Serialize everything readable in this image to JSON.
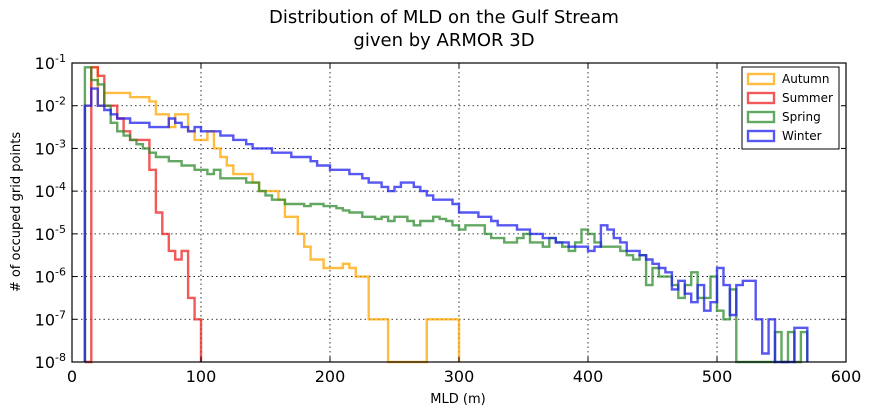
{
  "chart_data": {
    "type": "histogram-step",
    "title_line1": "Distribution of MLD on the Gulf Stream",
    "title_line2": "given by ARMOR 3D",
    "xlabel": "MLD (m)",
    "ylabel": "# of occuped grid points",
    "xlim": [
      0,
      600
    ],
    "ylim_log10": [
      -8,
      -1
    ],
    "yscale": "log",
    "grid": true,
    "legend_position": "top-right",
    "xticks": [
      "0",
      "100",
      "200",
      "300",
      "400",
      "500",
      "600"
    ],
    "yticks": [
      "10-8",
      "10-7",
      "10-6",
      "10-5",
      "10-4",
      "10-3",
      "10-2",
      "10-1"
    ],
    "bin_edges_start": 10,
    "bin_width": 5,
    "series": [
      {
        "name": "Autumn",
        "color": "#FFA500",
        "log10_values": [
          -2.0,
          -1.1,
          -2.0,
          -1.7,
          -1.7,
          -1.7,
          -1.7,
          -1.8,
          -1.8,
          -1.8,
          -1.9,
          -2.2,
          -2.2,
          -2.5,
          -2.2,
          -2.2,
          -2.6,
          -2.8,
          -2.8,
          -2.6,
          -3.0,
          -3.2,
          -3.4,
          -3.6,
          -3.6,
          -3.6,
          -3.8,
          -4.0,
          -4.0,
          -4.0,
          -4.2,
          -4.6,
          -4.6,
          -5.0,
          -5.3,
          -5.6,
          -5.6,
          -5.8,
          -5.8,
          -5.8,
          -5.7,
          -5.8,
          -6.0,
          -6.0,
          -7.0,
          -7.0,
          -7.0,
          -8.0,
          -8.0,
          -8.0,
          -8.0,
          -8.0,
          -8.0,
          -7.0,
          -7.0,
          -7.0,
          -7.0,
          -7.0,
          -8.0
        ]
      },
      {
        "name": "Summer",
        "color": "#EE2222",
        "log10_values": [
          -8.0,
          -1.1,
          -1.3,
          -2.0,
          -2.0,
          -2.3,
          -2.6,
          -2.8,
          -2.8,
          -2.8,
          -3.5,
          -4.5,
          -5.0,
          -5.4,
          -5.6,
          -5.4,
          -6.5,
          -7.0,
          -8.0
        ]
      },
      {
        "name": "Spring",
        "color": "#2E8B2E",
        "log10_values": [
          -1.1,
          -1.4,
          -1.5,
          -2.0,
          -2.4,
          -2.6,
          -2.7,
          -2.8,
          -2.9,
          -3.0,
          -3.1,
          -3.2,
          -3.2,
          -3.3,
          -3.3,
          -3.4,
          -3.4,
          -3.5,
          -3.5,
          -3.6,
          -3.5,
          -3.7,
          -3.7,
          -3.7,
          -3.7,
          -3.8,
          -3.8,
          -4.0,
          -4.1,
          -4.2,
          -4.2,
          -4.3,
          -4.3,
          -4.3,
          -4.35,
          -4.3,
          -4.3,
          -4.35,
          -4.35,
          -4.4,
          -4.45,
          -4.5,
          -4.5,
          -4.6,
          -4.6,
          -4.65,
          -4.6,
          -4.7,
          -4.6,
          -4.6,
          -4.7,
          -4.8,
          -4.7,
          -4.7,
          -4.6,
          -4.65,
          -4.7,
          -4.8,
          -4.9,
          -4.8,
          -4.8,
          -4.8,
          -5.0,
          -5.1,
          -5.1,
          -5.2,
          -5.2,
          -5.1,
          -5.0,
          -5.2,
          -5.2,
          -5.3,
          -5.1,
          -5.2,
          -5.3,
          -5.4,
          -5.2,
          -4.9,
          -5.0,
          -5.2,
          -5.3,
          -5.3,
          -5.3,
          -5.4,
          -5.5,
          -5.6,
          -5.5,
          -6.2,
          -5.8,
          -6.0,
          -6.0,
          -6.2,
          -6.5,
          -6.2,
          -5.9,
          -6.5,
          -6.5,
          -6.0,
          -6.8,
          -7.0,
          -6.3,
          -8.0,
          -8.0,
          -8.0,
          -8.0,
          -8.0,
          -8.0,
          -7.3,
          -8.0,
          -7.3,
          -8.0,
          -7.3
        ]
      },
      {
        "name": "Winter",
        "color": "#1F1FEE",
        "log10_values": [
          -2.0,
          -1.6,
          -2.0,
          -2.1,
          -2.2,
          -2.3,
          -2.3,
          -2.4,
          -2.4,
          -2.4,
          -2.5,
          -2.5,
          -2.5,
          -2.3,
          -2.4,
          -2.5,
          -2.6,
          -2.5,
          -2.6,
          -2.6,
          -2.6,
          -2.7,
          -2.7,
          -2.8,
          -2.8,
          -2.9,
          -3.0,
          -3.0,
          -3.0,
          -3.1,
          -3.1,
          -3.1,
          -3.2,
          -3.2,
          -3.2,
          -3.3,
          -3.4,
          -3.4,
          -3.5,
          -3.5,
          -3.5,
          -3.6,
          -3.6,
          -3.7,
          -3.8,
          -3.8,
          -3.9,
          -4.0,
          -3.9,
          -3.8,
          -3.8,
          -3.9,
          -4.0,
          -4.1,
          -4.2,
          -4.2,
          -4.2,
          -4.3,
          -4.5,
          -4.5,
          -4.5,
          -4.6,
          -4.6,
          -4.7,
          -4.8,
          -4.8,
          -4.8,
          -4.9,
          -4.9,
          -5.0,
          -5.0,
          -5.1,
          -5.1,
          -5.2,
          -5.2,
          -5.3,
          -5.3,
          -5.3,
          -5.4,
          -5.3,
          -4.8,
          -4.9,
          -5.1,
          -5.2,
          -5.4,
          -5.4,
          -5.5,
          -5.6,
          -5.7,
          -5.8,
          -5.9,
          -6.3,
          -6.1,
          -6.4,
          -6.6,
          -6.2,
          -6.8,
          -6.6,
          -5.8,
          -6.2,
          -6.9,
          -6.2,
          -6.1,
          -6.1,
          -7.0,
          -7.8,
          -7.0,
          -8.0,
          -8.0,
          -8.0,
          -7.2,
          -7.2,
          -8.0,
          -8.0,
          -8.0,
          -8.0,
          -8.0,
          -8.0,
          -8.0,
          -8.0,
          -8.0,
          -8.0,
          -8.0,
          -8.0,
          -8.0,
          -8.0,
          -8.0,
          -8.0,
          -8.0,
          -8.0,
          -8.0,
          -8.0,
          -8.0,
          -8.0,
          -8.0,
          -8.0,
          -8.0,
          -8.0,
          -8.0,
          -8.0,
          -8.0,
          -8.0,
          -8.0,
          -8.0,
          -8.0,
          -8.0,
          -8.0,
          -8.0,
          -8.0,
          -8.0,
          -8.0,
          -8.0,
          -8.0,
          -8.0,
          -8.0,
          -8.0,
          -8.0,
          -8.0,
          -8.0,
          -8.0,
          -8.0,
          -8.0,
          -8.0,
          -8.0,
          -8.0,
          -8.0,
          -8.0,
          -8.0,
          -8.0,
          -8.0,
          -8.0,
          -8.0,
          -8.0,
          -8.0,
          -8.0,
          -8.0,
          -8.0,
          -8.0,
          -8.0,
          -8.0,
          -8.0,
          -8.0,
          -8.0,
          -8.0,
          -8.0,
          -8.0,
          -8.0,
          -8.0,
          -8.0,
          -8.0,
          -8.0,
          -8.0,
          -8.0,
          -8.0,
          -8.0,
          -8.0,
          -8.0,
          -8.0,
          -8.0,
          -8.0,
          -8.0,
          -8.0,
          -8.0,
          -8.0,
          -8.0,
          -8.0,
          -8.0,
          -8.0,
          -8.0,
          -8.0,
          -8.0,
          -8.0,
          -8.0,
          -8.0,
          -8.0,
          -8.0,
          -8.0,
          -8.0,
          -8.0,
          -8.0,
          -8.0,
          -8.0,
          -8.0,
          -8.0,
          -8.0,
          -8.0,
          -8.0,
          -8.0,
          -8.0,
          -8.0,
          -8.0,
          -8.0,
          -8.0,
          -8.0,
          -8.0,
          -8.0,
          -8.0,
          -8.0,
          -8.0,
          -8.0,
          -8.0,
          -8.0,
          -8.0,
          -8.0,
          -8.0,
          -8.0,
          -8.0,
          -8.0,
          -8.0,
          -8.0
        ]
      }
    ]
  }
}
